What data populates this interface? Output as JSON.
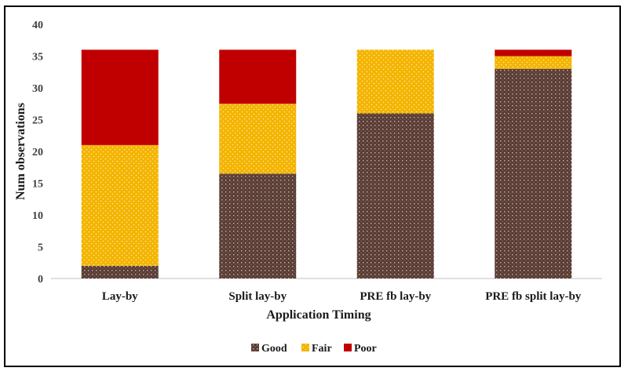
{
  "chart_data": {
    "type": "bar",
    "stacked": true,
    "title": "",
    "xlabel": "Application Timing",
    "ylabel": "Num observations",
    "ylim": [
      0,
      40
    ],
    "yticks": [
      0,
      5,
      10,
      15,
      20,
      25,
      30,
      35,
      40
    ],
    "categories": [
      "Lay-by",
      "Split lay-by",
      "PRE fb lay-by",
      "PRE fb split lay-by"
    ],
    "series": [
      {
        "name": "Good",
        "values": [
          2,
          16.5,
          26,
          33
        ],
        "color": "#5a3d35",
        "pattern": "dotted-grid"
      },
      {
        "name": "Fair",
        "values": [
          19,
          11,
          10,
          2
        ],
        "color": "#f4b400",
        "pattern": "dots"
      },
      {
        "name": "Poor",
        "values": [
          15,
          8.5,
          0,
          1
        ],
        "color": "#c00000",
        "pattern": "solid"
      }
    ],
    "legend_position": "bottom",
    "grid": false
  }
}
